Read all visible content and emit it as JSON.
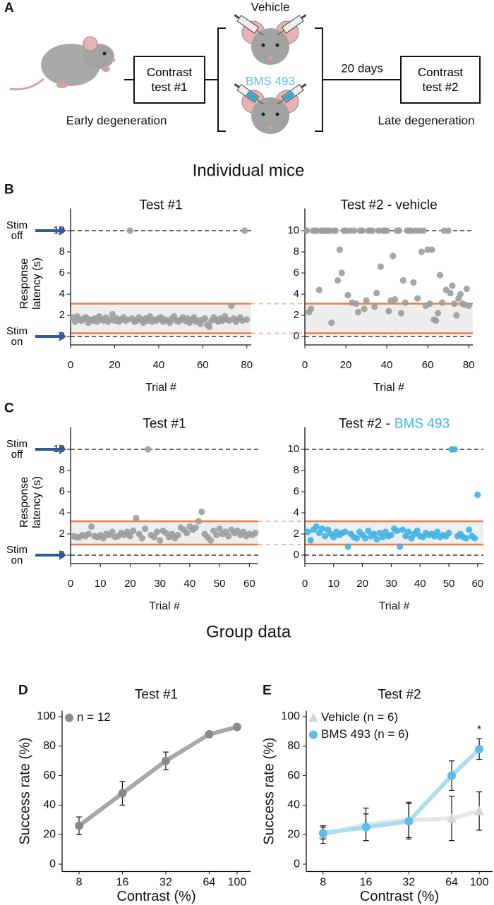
{
  "figure": {
    "header_individual": "Individual mice",
    "header_group": "Group data"
  },
  "diagram": {
    "panel": "A",
    "vehicle": "Vehicle",
    "drug": "BMS 493",
    "box1": "Contrast test #1",
    "box2": "Contrast test #2",
    "interval": "20 days",
    "early": "Early degeneration",
    "late": "Late degeneration"
  },
  "chart_data": [
    {
      "type": "scatter",
      "panel": "B",
      "title": "Test #1",
      "xlabel": "Trial #",
      "ylabel": "Response latency (s)",
      "annotations": [
        "Stim on",
        "Stim off"
      ],
      "ref_lines": [
        0,
        10
      ],
      "band": [
        0.3,
        3.1
      ],
      "color": "#9c9c9c",
      "xlim": [
        0,
        82
      ],
      "ylim": [
        -0.8,
        12.1
      ],
      "xticks": [
        0,
        20,
        40,
        60,
        80
      ],
      "yticks": [
        0,
        2,
        4,
        6,
        8,
        10
      ],
      "x": [
        1,
        2,
        3,
        4,
        5,
        6,
        7,
        8,
        9,
        10,
        11,
        12,
        13,
        14,
        15,
        16,
        17,
        18,
        19,
        20,
        21,
        22,
        23,
        24,
        25,
        26,
        27,
        28,
        29,
        30,
        31,
        32,
        33,
        34,
        35,
        36,
        37,
        38,
        39,
        40,
        41,
        42,
        43,
        44,
        45,
        46,
        47,
        48,
        49,
        50,
        51,
        52,
        53,
        54,
        55,
        56,
        57,
        58,
        59,
        60,
        61,
        62,
        63,
        64,
        65,
        66,
        67,
        68,
        69,
        70,
        71,
        72,
        73,
        74,
        75,
        76,
        77,
        78,
        79,
        80
      ],
      "values": [
        1.8,
        1.4,
        1.9,
        1.6,
        1.5,
        1.7,
        1.8,
        1.3,
        1.6,
        1.5,
        1.7,
        1.4,
        1.9,
        1.6,
        1.5,
        1.8,
        1.4,
        1.6,
        2.1,
        1.5,
        1.7,
        1.4,
        1.6,
        1.8,
        1.5,
        1.6,
        10,
        1.7,
        1.4,
        1.5,
        1.8,
        1.6,
        1.3,
        1.7,
        1.5,
        1.9,
        1.4,
        1.6,
        1.5,
        1.7,
        1.8,
        1.4,
        1.6,
        1.5,
        1.3,
        1.7,
        1.9,
        1.5,
        1.4,
        1.6,
        1.8,
        1.5,
        1.7,
        1.3,
        1.6,
        1.8,
        1.4,
        1.5,
        1.2,
        1.6,
        1.7,
        1.1,
        0.9,
        1.5,
        1.8,
        1.6,
        1.4,
        1.7,
        1.5,
        1.9,
        1.6,
        1.5,
        2.9,
        1.7,
        1.4,
        1.6,
        1.8,
        1.5,
        10,
        1.6
      ]
    },
    {
      "type": "scatter",
      "title": "Test #2 - vehicle",
      "xlabel": "Trial #",
      "ref_lines": [
        0,
        10
      ],
      "band": [
        0.3,
        3.1
      ],
      "color": "#9c9c9c",
      "xlim": [
        0,
        82
      ],
      "ylim": [
        -0.8,
        12.1
      ],
      "xticks": [
        0,
        20,
        40,
        60,
        80
      ],
      "yticks": [
        0,
        2,
        4,
        6,
        8,
        10
      ],
      "x": [
        1,
        2,
        3,
        4,
        5,
        6,
        7,
        8,
        9,
        10,
        11,
        12,
        13,
        14,
        15,
        16,
        17,
        18,
        19,
        20,
        21,
        22,
        23,
        24,
        25,
        26,
        27,
        28,
        29,
        30,
        31,
        32,
        33,
        34,
        35,
        36,
        37,
        38,
        39,
        40,
        41,
        42,
        43,
        44,
        45,
        46,
        47,
        48,
        49,
        50,
        51,
        52,
        53,
        54,
        55,
        56,
        57,
        58,
        59,
        60,
        61,
        62,
        63,
        64,
        65,
        66,
        67,
        68,
        69,
        70,
        71,
        72,
        73,
        74,
        75,
        76,
        77,
        78,
        79,
        80
      ],
      "values": [
        10,
        2.3,
        2.6,
        10,
        10,
        10,
        4.4,
        10,
        10,
        10,
        10,
        10,
        1.3,
        10,
        10,
        5.3,
        8.2,
        6.0,
        10,
        10,
        3.9,
        10,
        3.2,
        10,
        3.1,
        2.3,
        10,
        10,
        2.6,
        3.4,
        10,
        10,
        10,
        2.8,
        4.1,
        10,
        6.6,
        10,
        10,
        10,
        2.4,
        3.4,
        7.6,
        3.5,
        10,
        10,
        2.2,
        5.3,
        3.2,
        10,
        10,
        10,
        5.1,
        10,
        3.6,
        10,
        8.0,
        10,
        2.9,
        8.2,
        3.1,
        8.2,
        1.6,
        1.5,
        2.2,
        5.8,
        3.2,
        10,
        4.4,
        10,
        4.1,
        4.8,
        3.1,
        2.0,
        3.6,
        4.0,
        3.1,
        3.0,
        4.5,
        2.9
      ]
    },
    {
      "type": "scatter",
      "panel": "C",
      "title": "Test #1",
      "xlabel": "Trial #",
      "ylabel": "Response latency (s)",
      "annotations": [
        "Stim on",
        "Stim off"
      ],
      "ref_lines": [
        0,
        10
      ],
      "band": [
        1.0,
        3.2
      ],
      "color": "#9c9c9c",
      "xlim": [
        0,
        63
      ],
      "ylim": [
        -0.8,
        12.1
      ],
      "xticks": [
        0,
        10,
        20,
        30,
        40,
        50,
        60
      ],
      "yticks": [
        0,
        2,
        4,
        6,
        8,
        10
      ],
      "x": [
        1,
        2,
        3,
        4,
        5,
        6,
        7,
        8,
        9,
        10,
        11,
        12,
        13,
        14,
        15,
        16,
        17,
        18,
        19,
        20,
        21,
        22,
        23,
        24,
        25,
        26,
        27,
        28,
        29,
        30,
        31,
        32,
        33,
        34,
        35,
        36,
        37,
        38,
        39,
        40,
        41,
        42,
        43,
        44,
        45,
        46,
        47,
        48,
        49,
        50,
        51,
        52,
        53,
        54,
        55,
        56,
        57,
        58,
        59,
        60,
        61,
        62
      ],
      "values": [
        1.8,
        1.7,
        1.7,
        1.9,
        1.8,
        2.0,
        2.7,
        1.8,
        1.7,
        1.9,
        1.6,
        2.0,
        1.9,
        2.2,
        1.7,
        1.8,
        2.1,
        1.9,
        2.2,
        1.8,
        2.3,
        3.5,
        2.0,
        1.6,
        2.5,
        10,
        1.9,
        1.7,
        2.2,
        1.4,
        2.3,
        2.1,
        1.7,
        2.0,
        1.6,
        1.9,
        2.6,
        2.4,
        2.1,
        2.7,
        2.4,
        2.6,
        3.2,
        4.1,
        2.0,
        1.7,
        1.4,
        2.3,
        1.9,
        2.5,
        2.0,
        2.2,
        1.8,
        2.4,
        2.1,
        2.3,
        1.9,
        2.2,
        1.8,
        2.0,
        1.9,
        2.1
      ]
    },
    {
      "type": "scatter",
      "title": "Test #2 -",
      "title_highlight": "BMS 493",
      "highlight_color": "#3fb3e6",
      "xlabel": "Trial #",
      "ref_lines": [
        0,
        10
      ],
      "band": [
        1.0,
        3.2
      ],
      "color": "#3fb3e6",
      "xlim": [
        0,
        62
      ],
      "ylim": [
        -0.8,
        12.1
      ],
      "xticks": [
        0,
        10,
        20,
        30,
        40,
        50,
        60
      ],
      "yticks": [
        0,
        2,
        4,
        6,
        8,
        10
      ],
      "x": [
        1,
        2,
        3,
        4,
        5,
        6,
        7,
        8,
        9,
        10,
        11,
        12,
        13,
        14,
        15,
        16,
        17,
        18,
        19,
        20,
        21,
        22,
        23,
        24,
        25,
        26,
        27,
        28,
        29,
        30,
        31,
        32,
        33,
        34,
        35,
        36,
        37,
        38,
        39,
        40,
        41,
        42,
        43,
        44,
        45,
        46,
        47,
        48,
        49,
        50,
        51,
        52,
        53,
        54,
        55,
        56,
        57,
        58,
        59,
        60
      ],
      "values": [
        2.2,
        1.4,
        2.4,
        2.7,
        2.1,
        2.5,
        1.8,
        2.4,
        2.0,
        1.7,
        2.2,
        1.9,
        2.1,
        2.2,
        0.8,
        2.0,
        1.7,
        1.6,
        2.2,
        1.9,
        1.6,
        2.3,
        1.8,
        2.0,
        1.5,
        2.1,
        1.7,
        2.2,
        1.8,
        1.9,
        2.5,
        2.3,
        0.8,
        2.4,
        1.8,
        2.2,
        1.6,
        2.0,
        2.3,
        1.8,
        1.7,
        2.1,
        1.9,
        2.0,
        1.8,
        2.2,
        1.7,
        1.9,
        1.8,
        2.1,
        10,
        10,
        1.8,
        2.0,
        1.7,
        1.6,
        2.4,
        1.8,
        1.6,
        5.7
      ]
    },
    {
      "type": "line",
      "panel": "D",
      "title": "Test #1",
      "xlabel": "Contrast (%)",
      "ylabel": "Success rate (%)",
      "xscale": "log",
      "legend": "upper left",
      "xlim": [
        6.1,
        124
      ],
      "ylim": [
        -5,
        104
      ],
      "xticks": [
        8,
        16,
        32,
        64,
        100
      ],
      "yticks": [
        0,
        20,
        40,
        60,
        80,
        100
      ],
      "x": [
        8,
        16,
        32,
        64,
        100
      ],
      "series": [
        {
          "name": "n = 12",
          "marker": "circle",
          "color": "#8a8a8a",
          "line_color": "#a8a8a8",
          "values": [
            26,
            48,
            70,
            88,
            93
          ],
          "errors": [
            6,
            8,
            6,
            1.5,
            1
          ]
        }
      ]
    },
    {
      "type": "line",
      "panel": "E",
      "title": "Test #2",
      "xlabel": "Contrast (%)",
      "ylabel": "Success rate (%)",
      "xscale": "log",
      "legend": "upper left",
      "significance": "*",
      "xlim": [
        6.1,
        124
      ],
      "ylim": [
        -5,
        104
      ],
      "xticks": [
        8,
        16,
        32,
        64,
        100
      ],
      "yticks": [
        0,
        20,
        40,
        60,
        80,
        100
      ],
      "x": [
        8,
        16,
        32,
        64,
        100
      ],
      "series": [
        {
          "name": "Vehicle (n = 6)",
          "marker": "triangle",
          "color": "#d4d4d4",
          "line_color": "#e6e6e6",
          "values": [
            20,
            27,
            30,
            31,
            36
          ],
          "errors": [
            6,
            11,
            12,
            15,
            13
          ]
        },
        {
          "name": "BMS 493 (n = 6)",
          "marker": "circle",
          "color": "#5bbde9",
          "line_color": "#aadcf3",
          "values": [
            21,
            25,
            29,
            60,
            78
          ],
          "errors": [
            4,
            9,
            12,
            10,
            7
          ]
        }
      ]
    }
  ]
}
